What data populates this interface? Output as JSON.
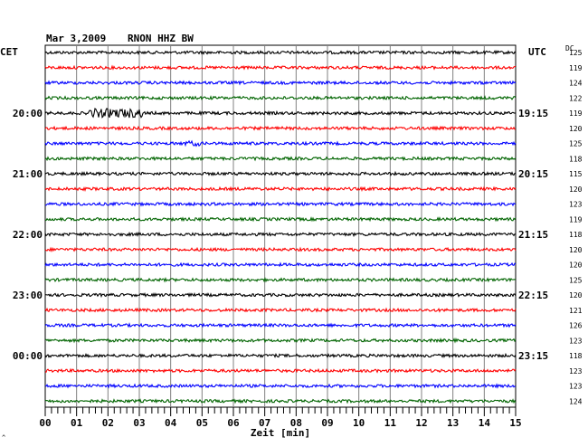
{
  "header": {
    "date": "Mar 3,2009",
    "station": "RNON HHZ BW",
    "left_zone": "CET",
    "right_zone": "UTC",
    "dc_label": "DC"
  },
  "chart_data": {
    "type": "line",
    "title": "Mar 3,2009   RNON HHZ BW",
    "xlabel": "Zeit [min]",
    "xlim": [
      0,
      15
    ],
    "x_ticks": [
      "00",
      "01",
      "02",
      "03",
      "04",
      "05",
      "06",
      "07",
      "08",
      "09",
      "10",
      "11",
      "12",
      "13",
      "14",
      "15"
    ],
    "grid": true,
    "trace_colors": [
      "#000000",
      "#ff0000",
      "#0000ff",
      "#006400"
    ],
    "left_time_labels": [
      {
        "trace": 4,
        "label": "20:00"
      },
      {
        "trace": 8,
        "label": "21:00"
      },
      {
        "trace": 12,
        "label": "22:00"
      },
      {
        "trace": 16,
        "label": "23:00"
      },
      {
        "trace": 20,
        "label": "00:00"
      }
    ],
    "right_time_labels": [
      {
        "trace": 4,
        "label": "19:15"
      },
      {
        "trace": 8,
        "label": "20:15"
      },
      {
        "trace": 12,
        "label": "21:15"
      },
      {
        "trace": 16,
        "label": "22:15"
      },
      {
        "trace": 20,
        "label": "23:15"
      }
    ],
    "dc_values": [
      125,
      119,
      124,
      122,
      119,
      120,
      125,
      118,
      115,
      120,
      123,
      119,
      118,
      120,
      120,
      125,
      120,
      121,
      126,
      123,
      118,
      123,
      123,
      124
    ],
    "events": [
      {
        "trace": 4,
        "x_start": 1.4,
        "x_end": 3.1,
        "strength": 3.2
      },
      {
        "trace": 6,
        "x_start": 4.4,
        "x_end": 5.0,
        "strength": 1.8
      }
    ]
  }
}
